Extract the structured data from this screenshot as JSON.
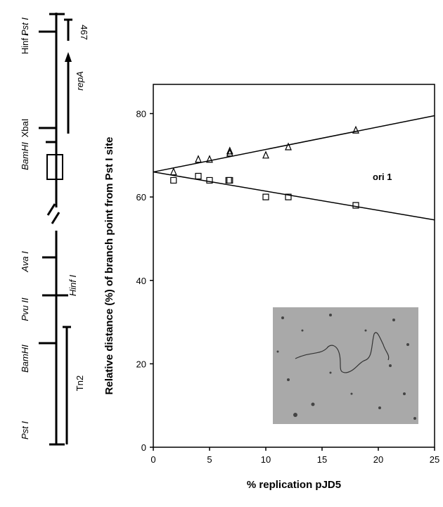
{
  "chart_data": {
    "type": "scatter",
    "x_label": "% replication pJD5",
    "y_label": "Relative distance (%) of branch point from Pst I site",
    "annotation": "ori 1",
    "xlim": [
      0,
      25
    ],
    "xticks": [
      0,
      5,
      10,
      15,
      20,
      25
    ],
    "ylim": [
      0,
      87
    ],
    "yticks": [
      0,
      20,
      40,
      60,
      80
    ],
    "series": [
      {
        "marker": "triangle",
        "color": "#000000",
        "x": [
          1.8,
          4,
          5,
          6.8,
          6.8,
          10,
          12,
          18
        ],
        "values": [
          66,
          69,
          69,
          70.5,
          71,
          70,
          72,
          76
        ]
      },
      {
        "marker": "square",
        "color": "#000000",
        "x": [
          1.8,
          4,
          5,
          6.7,
          6.8,
          10,
          12,
          18
        ],
        "values": [
          64,
          65,
          64,
          64,
          64,
          60,
          60,
          58
        ]
      }
    ],
    "fits": [
      {
        "color": "#000000",
        "x": [
          0,
          25
        ],
        "values": [
          66,
          79.5
        ]
      },
      {
        "color": "#000000",
        "x": [
          0,
          25
        ],
        "values": [
          66,
          54.5
        ]
      }
    ]
  },
  "map": {
    "labels": [
      "Pst I",
      "Hinf I",
      "467",
      "repA",
      "XbaI",
      "BamHI",
      "Ava I",
      "Hinf I",
      "Pvu II",
      "BamHI",
      "Tn2",
      "Pst I"
    ]
  }
}
